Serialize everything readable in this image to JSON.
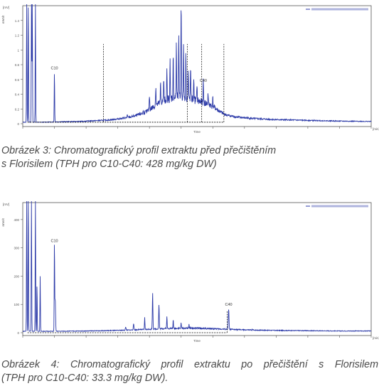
{
  "captions": {
    "fig3_line1": "Obrázek 3: Chromatografický profil extraktu před přečištěním",
    "fig3_line2": "s Florisilem (TPH pro C10-C40: 428 mg/kg DW)",
    "fig4_line1": "Obrázek 4: Chromatografický profil extraktu po přečištění s Florisilem",
    "fig4_line2": "(TPH pro C10-C40: 33.3 mg/kg DW)."
  },
  "colors": {
    "trace": "#2c3aa8",
    "frame": "#1e2a8a",
    "baseline": "#000000",
    "caption": "#4a4a4a"
  },
  "chart_data": [
    {
      "type": "line",
      "panel": "fig3",
      "title": "",
      "xlabel": "Time",
      "ylabel": "mVolt",
      "x_unit": "min",
      "y_unit": "mV",
      "xlim": [
        0,
        22
      ],
      "ylim": [
        0,
        1.6
      ],
      "y_ticks": [
        "1.4",
        "1.2",
        "1",
        "0.8",
        "0.6",
        "0.4",
        "0.2",
        "0"
      ],
      "legend": "top-right",
      "grid": false,
      "annotations": [
        {
          "text": "C10",
          "x": 2.0,
          "y": 0.72
        },
        {
          "text": "C40",
          "x": 11.4,
          "y": 0.55
        }
      ],
      "baseline": 0.02,
      "background": [
        [
          0,
          0.02
        ],
        [
          1.2,
          0.02
        ],
        [
          2.2,
          0.025
        ],
        [
          3.5,
          0.03
        ],
        [
          4.5,
          0.04
        ],
        [
          5.5,
          0.05
        ],
        [
          6.2,
          0.07
        ],
        [
          6.8,
          0.09
        ],
        [
          7.3,
          0.12
        ],
        [
          7.8,
          0.16
        ],
        [
          8.2,
          0.22
        ],
        [
          8.5,
          0.26
        ],
        [
          8.8,
          0.3
        ],
        [
          9.1,
          0.33
        ],
        [
          9.4,
          0.35
        ],
        [
          9.7,
          0.36
        ],
        [
          10.0,
          0.37
        ],
        [
          10.3,
          0.36
        ],
        [
          10.6,
          0.34
        ],
        [
          10.9,
          0.32
        ],
        [
          11.2,
          0.3
        ],
        [
          11.5,
          0.28
        ],
        [
          11.8,
          0.26
        ],
        [
          12.1,
          0.22
        ],
        [
          12.4,
          0.17
        ],
        [
          12.7,
          0.13
        ],
        [
          13.0,
          0.11
        ],
        [
          13.5,
          0.09
        ],
        [
          14.5,
          0.07
        ],
        [
          16,
          0.055
        ],
        [
          18,
          0.045
        ],
        [
          20,
          0.035
        ],
        [
          22,
          0.03
        ]
      ],
      "peaks": [
        {
          "x": 0.25,
          "y": 1.65,
          "w": 0.02
        },
        {
          "x": 0.35,
          "y": 1.65,
          "w": 0.02
        },
        {
          "x": 0.55,
          "y": 1.65,
          "w": 0.02
        },
        {
          "x": 0.6,
          "y": 1.65,
          "w": 0.02
        },
        {
          "x": 0.8,
          "y": 1.65,
          "w": 0.02
        },
        {
          "x": 2.0,
          "y": 0.7,
          "w": 0.02
        },
        {
          "x": 6.6,
          "y": 0.12,
          "w": 0.02
        },
        {
          "x": 7.1,
          "y": 0.1,
          "w": 0.02
        },
        {
          "x": 7.6,
          "y": 0.17,
          "w": 0.02
        },
        {
          "x": 8.0,
          "y": 0.38,
          "w": 0.025
        },
        {
          "x": 8.4,
          "y": 0.5,
          "w": 0.025
        },
        {
          "x": 8.7,
          "y": 0.55,
          "w": 0.02
        },
        {
          "x": 8.9,
          "y": 0.62,
          "w": 0.02
        },
        {
          "x": 9.1,
          "y": 0.72,
          "w": 0.02
        },
        {
          "x": 9.3,
          "y": 0.85,
          "w": 0.02
        },
        {
          "x": 9.5,
          "y": 0.92,
          "w": 0.02
        },
        {
          "x": 9.7,
          "y": 1.12,
          "w": 0.02
        },
        {
          "x": 9.85,
          "y": 1.25,
          "w": 0.02
        },
        {
          "x": 10.0,
          "y": 1.62,
          "w": 0.025
        },
        {
          "x": 10.15,
          "y": 1.1,
          "w": 0.02
        },
        {
          "x": 10.3,
          "y": 0.98,
          "w": 0.02
        },
        {
          "x": 10.45,
          "y": 0.72,
          "w": 0.02
        },
        {
          "x": 10.6,
          "y": 0.78,
          "w": 0.02
        },
        {
          "x": 10.8,
          "y": 0.65,
          "w": 0.02
        },
        {
          "x": 11.0,
          "y": 0.55,
          "w": 0.02
        },
        {
          "x": 11.4,
          "y": 0.6,
          "w": 0.02
        },
        {
          "x": 11.7,
          "y": 0.42,
          "w": 0.02
        },
        {
          "x": 12.0,
          "y": 0.35,
          "w": 0.02
        }
      ],
      "dashed_markers": [
        5.1,
        10.4,
        11.3,
        12.7
      ]
    },
    {
      "type": "line",
      "panel": "fig4",
      "title": "",
      "xlabel": "Time",
      "ylabel": "mVolt",
      "x_unit": "min",
      "y_unit": "mV",
      "xlim": [
        0,
        22
      ],
      "ylim": [
        0,
        460
      ],
      "y_ticks": [
        "400",
        "300",
        "200",
        "100",
        "0"
      ],
      "legend": "top-right",
      "grid": false,
      "annotations": [
        {
          "text": "C10",
          "x": 2.0,
          "y": 315
        },
        {
          "text": "C40",
          "x": 13.0,
          "y": 90
        }
      ],
      "baseline": 0,
      "background": [
        [
          0,
          5
        ],
        [
          2,
          5
        ],
        [
          4,
          6
        ],
        [
          6,
          8
        ],
        [
          8,
          12
        ],
        [
          9,
          15
        ],
        [
          10,
          16
        ],
        [
          11,
          16
        ],
        [
          12,
          14
        ],
        [
          13,
          12
        ],
        [
          14,
          10
        ],
        [
          16,
          8
        ],
        [
          18,
          7
        ],
        [
          20,
          6
        ],
        [
          22,
          6
        ]
      ],
      "peaks": [
        {
          "x": 0.25,
          "y": 500,
          "w": 0.02
        },
        {
          "x": 0.35,
          "y": 500,
          "w": 0.02
        },
        {
          "x": 0.55,
          "y": 500,
          "w": 0.02
        },
        {
          "x": 0.8,
          "y": 500,
          "w": 0.02
        },
        {
          "x": 0.9,
          "y": 170,
          "w": 0.02
        },
        {
          "x": 1.1,
          "y": 200,
          "w": 0.02
        },
        {
          "x": 2.0,
          "y": 320,
          "w": 0.02
        },
        {
          "x": 2.05,
          "y": 120,
          "w": 0.03
        },
        {
          "x": 6.5,
          "y": 20,
          "w": 0.03
        },
        {
          "x": 7.0,
          "y": 30,
          "w": 0.03
        },
        {
          "x": 7.7,
          "y": 55,
          "w": 0.02
        },
        {
          "x": 8.2,
          "y": 140,
          "w": 0.025
        },
        {
          "x": 8.6,
          "y": 100,
          "w": 0.025
        },
        {
          "x": 9.1,
          "y": 60,
          "w": 0.02
        },
        {
          "x": 9.5,
          "y": 45,
          "w": 0.02
        },
        {
          "x": 10.0,
          "y": 35,
          "w": 0.02
        },
        {
          "x": 10.5,
          "y": 30,
          "w": 0.02
        },
        {
          "x": 13.0,
          "y": 85,
          "w": 0.03
        },
        {
          "x": 14.5,
          "y": 12,
          "w": 0.02
        }
      ],
      "dashed_markers": [
        12.9
      ]
    }
  ]
}
